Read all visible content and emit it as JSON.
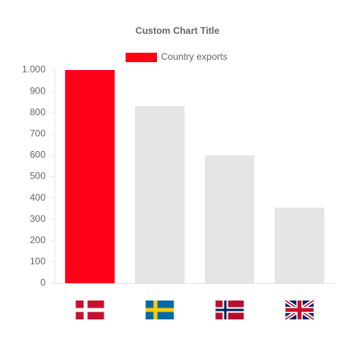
{
  "chart_data": {
    "type": "bar",
    "title": "Custom Chart Title",
    "categories": [
      null,
      null,
      null,
      null
    ],
    "series": [
      {
        "name": "Country exports",
        "color": "#ff0019",
        "values": [
          1000,
          830,
          600,
          355
        ]
      }
    ],
    "colors": [
      "#ff0019",
      "#e5e5e5",
      "#e5e5e5",
      "#e5e5e5"
    ],
    "ylim": [
      0,
      1000
    ],
    "yticks": [
      0,
      100,
      200,
      300,
      400,
      500,
      600,
      700,
      800,
      900,
      {
        "value": 1000,
        "label": "1.000"
      }
    ],
    "grid": false
  }
}
